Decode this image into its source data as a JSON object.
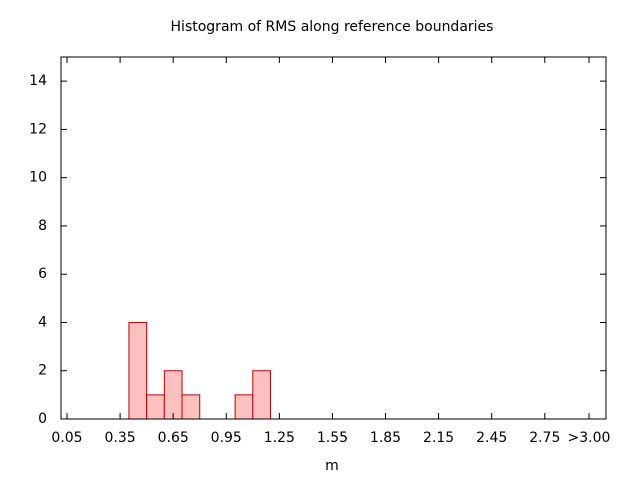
{
  "chart_data": {
    "type": "histogram",
    "title": "Histogram of RMS along reference boundaries",
    "x_label": "m",
    "bins": [
      0.4,
      0.5,
      0.6,
      0.7,
      0.8,
      0.9,
      1.0,
      1.1,
      1.2
    ],
    "counts": [
      4,
      1,
      2,
      1,
      0,
      0,
      1,
      2
    ],
    "color": "#ffc0c0",
    "edge_color": "#c00000",
    "xlim": [
      0.016,
      3.096
    ],
    "xticks": [
      0.05,
      0.35,
      0.65,
      0.95,
      1.25,
      1.55,
      1.85,
      2.15,
      2.45,
      2.75,
      {
        "value": 3.0,
        "label": ">3.00"
      }
    ],
    "ylim": [
      0,
      15
    ],
    "yticks": [
      0,
      2,
      4,
      6,
      8,
      10,
      12,
      14
    ]
  }
}
